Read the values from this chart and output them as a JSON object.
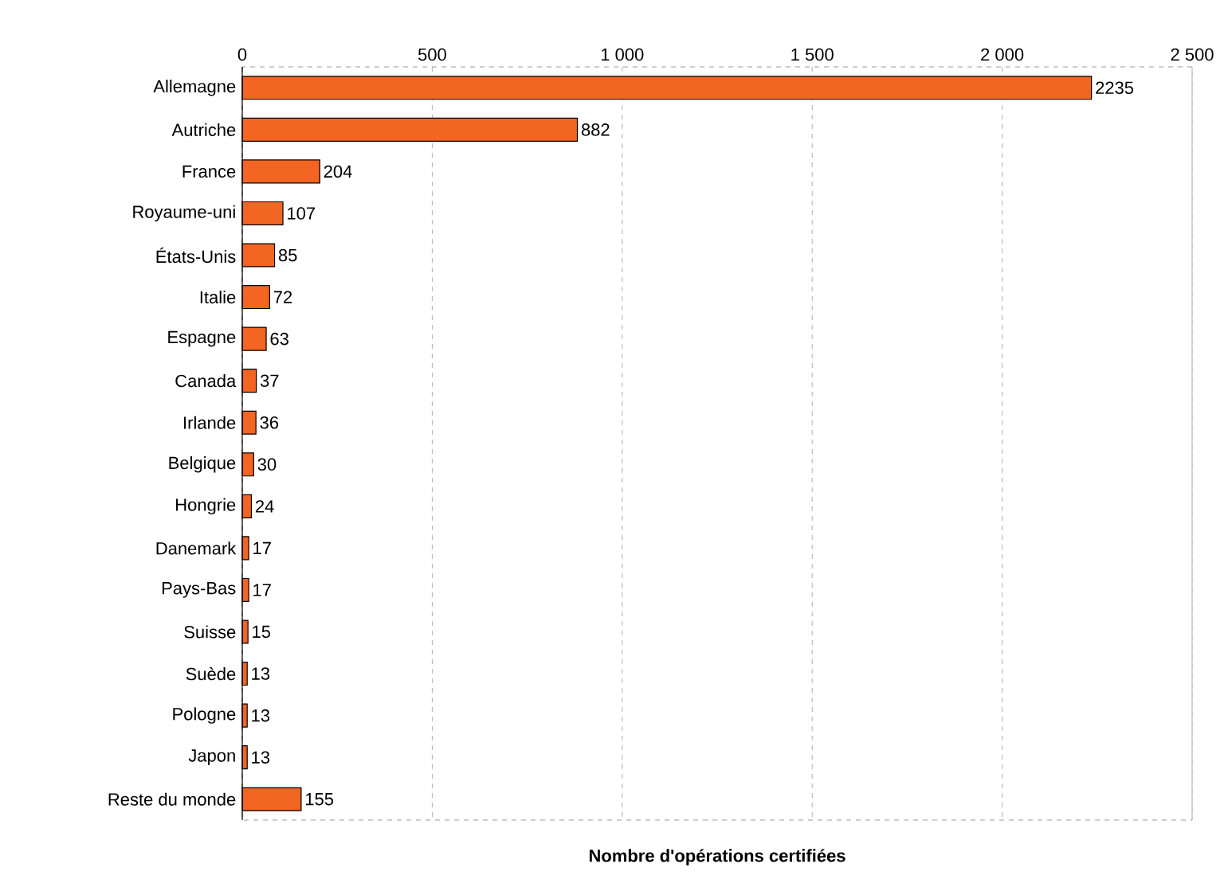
{
  "chart_data": {
    "type": "bar",
    "orientation": "horizontal",
    "xlabel": "Nombre d'opérations certifiées",
    "categories": [
      "Allemagne",
      "Autriche",
      "France",
      "Royaume-uni",
      "États-Unis",
      "Italie",
      "Espagne",
      "Canada",
      "Irlande",
      "Belgique",
      "Hongrie",
      "Danemark",
      "Pays-Bas",
      "Suisse",
      "Suède",
      "Pologne",
      "Japon",
      "Reste du monde"
    ],
    "values": [
      2235,
      882,
      204,
      107,
      85,
      72,
      63,
      37,
      36,
      30,
      24,
      17,
      17,
      15,
      13,
      13,
      13,
      155
    ],
    "color": "#f26522",
    "xlim": [
      0,
      2500
    ],
    "xticks": [
      0,
      500,
      {
        "value": 1000,
        "label": "1 000"
      },
      {
        "value": 1500,
        "label": "1 500"
      },
      {
        "value": 2000,
        "label": "2 000"
      },
      {
        "value": 2500,
        "label": "2 500"
      }
    ],
    "grid": "x",
    "data_labels": true
  }
}
